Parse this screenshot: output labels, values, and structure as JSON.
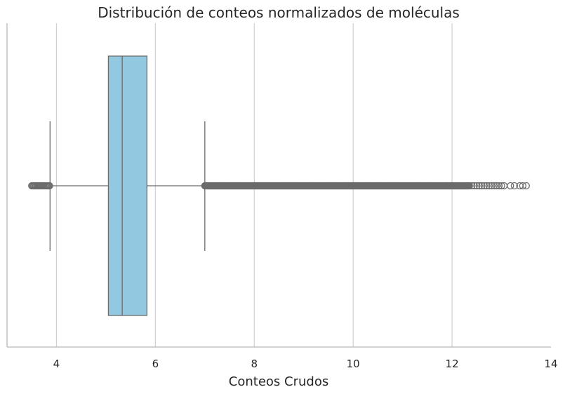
{
  "chart_data": {
    "type": "box",
    "title": "Distribución de conteos normalizados de moléculas",
    "xlabel": "Conteos Crudos",
    "ylabel": "",
    "orientation": "horizontal",
    "xlim": [
      3.0,
      14.0
    ],
    "xticks": [
      4,
      6,
      8,
      10,
      12,
      14
    ],
    "grid": "x",
    "box": {
      "whisker_low": 3.87,
      "q1": 5.05,
      "median": 5.33,
      "q3": 5.83,
      "whisker_high": 7.0,
      "outliers_low_range": [
        3.5,
        3.87
      ],
      "outliers_high_range": [
        7.0,
        13.5
      ]
    },
    "colors": {
      "box_fill": "#92c9e0",
      "line": "#6b6b6b",
      "grid": "#d0d0d0",
      "axis": "#c4c4c4"
    }
  }
}
